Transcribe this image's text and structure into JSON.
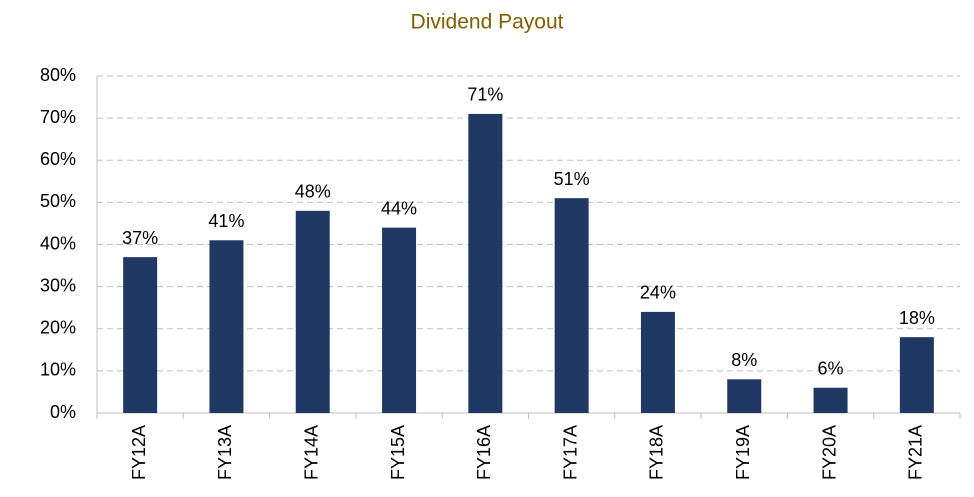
{
  "chart_data": {
    "type": "bar",
    "title": "Dividend Payout",
    "categories": [
      "FY12A",
      "FY13A",
      "FY14A",
      "FY15A",
      "FY16A",
      "FY17A",
      "FY18A",
      "FY19A",
      "FY20A",
      "FY21A"
    ],
    "values": [
      37,
      41,
      48,
      44,
      71,
      51,
      24,
      8,
      6,
      18
    ],
    "value_labels": [
      "37%",
      "41%",
      "48%",
      "44%",
      "71%",
      "51%",
      "24%",
      "8%",
      "6%",
      "18%"
    ],
    "color": "#1f3864",
    "ylim": [
      0,
      80
    ],
    "yticks": [
      {
        "value": 0,
        "label": "0%"
      },
      {
        "value": 10,
        "label": "10%"
      },
      {
        "value": 20,
        "label": "20%"
      },
      {
        "value": 30,
        "label": "30%"
      },
      {
        "value": 40,
        "label": "40%"
      },
      {
        "value": 50,
        "label": "50%"
      },
      {
        "value": 60,
        "label": "60%"
      },
      {
        "value": 70,
        "label": "70%"
      },
      {
        "value": 80,
        "label": "80%"
      }
    ],
    "grid": true
  }
}
